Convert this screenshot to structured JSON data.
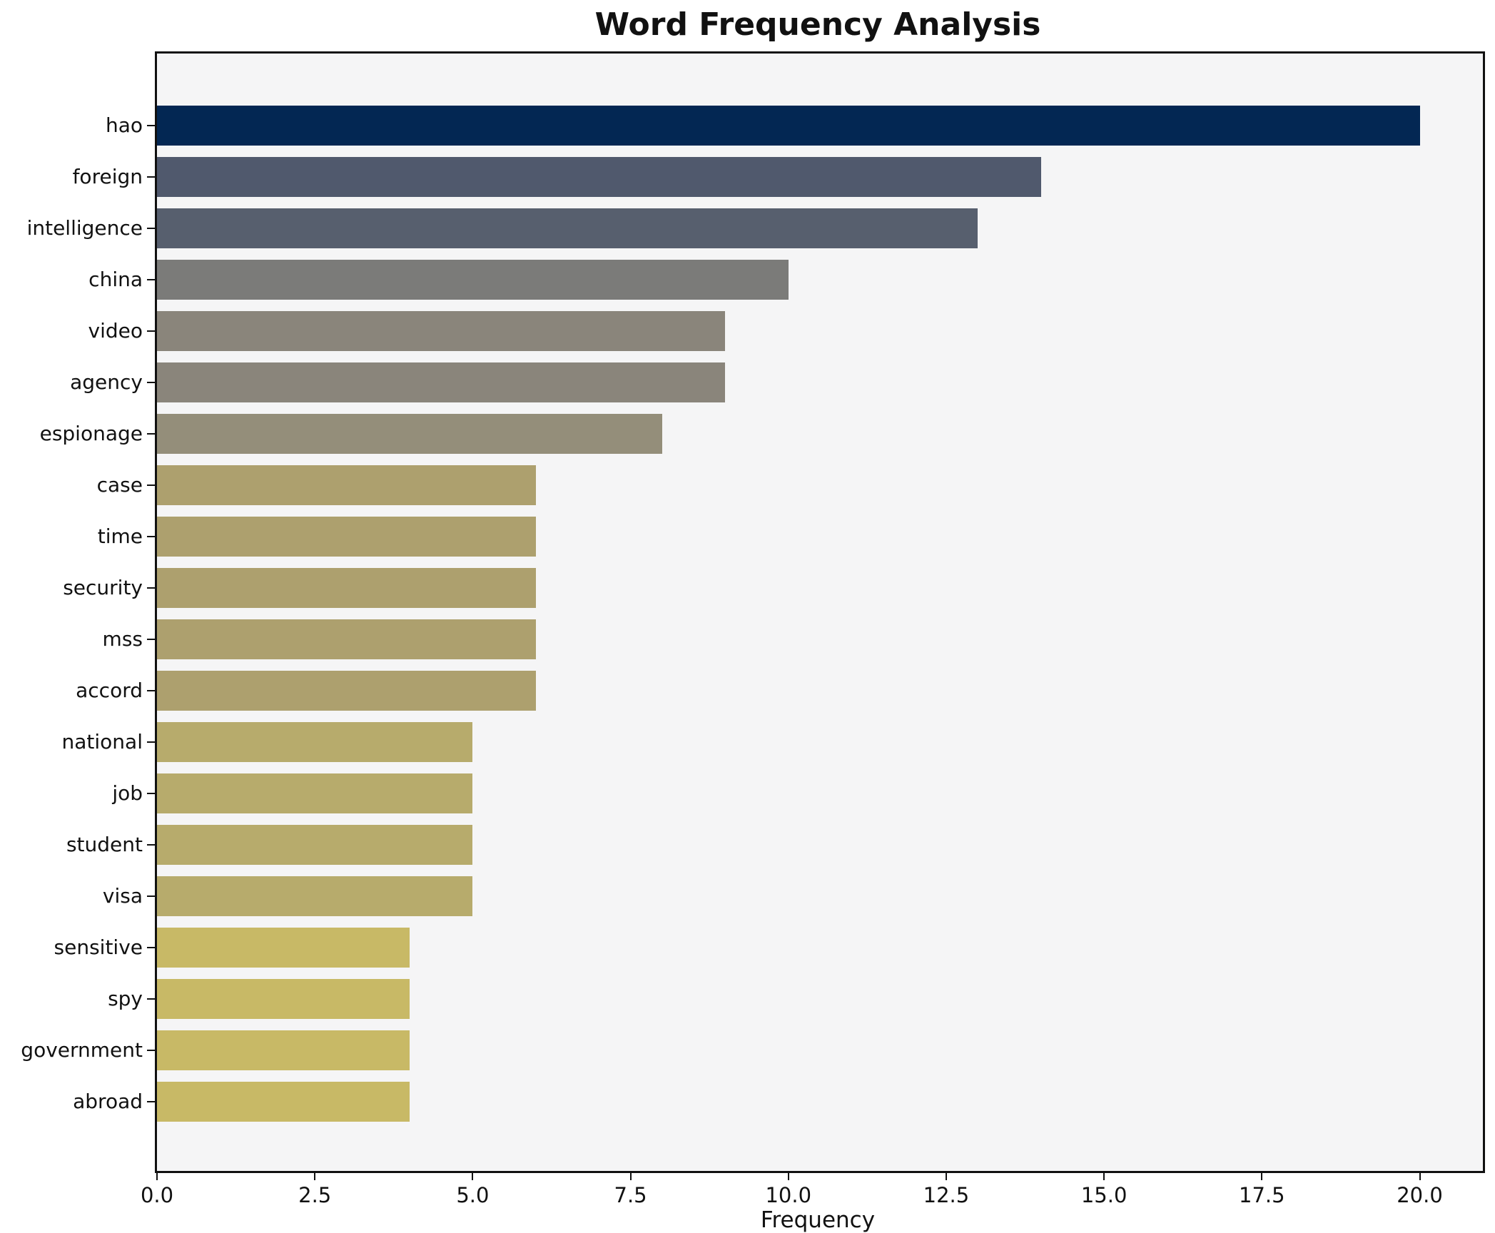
{
  "title": "Word Frequency Analysis",
  "x_axis": {
    "label": "Frequency",
    "ticks": [
      "0.0",
      "2.5",
      "5.0",
      "7.5",
      "10.0",
      "12.5",
      "15.0",
      "17.5",
      "20.0"
    ]
  },
  "colors": {
    "figure_bg": "#ffffff",
    "plot_bg": "#f5f5f6",
    "spine": "#111111",
    "text": "#111111"
  },
  "chart_data": {
    "type": "bar",
    "orientation": "horizontal",
    "title": "Word Frequency Analysis",
    "xlabel": "Frequency",
    "ylabel": "",
    "xlim": [
      0,
      21
    ],
    "grid": false,
    "legend": false,
    "categories": [
      "hao",
      "foreign",
      "intelligence",
      "china",
      "video",
      "agency",
      "espionage",
      "case",
      "time",
      "security",
      "mss",
      "accord",
      "national",
      "job",
      "student",
      "visa",
      "sensitive",
      "spy",
      "government",
      "abroad"
    ],
    "values": [
      20,
      14,
      13,
      10,
      9,
      9,
      8,
      6,
      6,
      6,
      6,
      6,
      5,
      5,
      5,
      5,
      4,
      4,
      4,
      4
    ],
    "bar_colors": [
      "#032753",
      "#50596d",
      "#575f6e",
      "#7b7b79",
      "#8a857b",
      "#8a857b",
      "#948e7a",
      "#ada06e",
      "#ada06e",
      "#ada06e",
      "#ada06e",
      "#ada06e",
      "#b7ab6c",
      "#b7ab6c",
      "#b7ab6c",
      "#b7ab6c",
      "#c8b966",
      "#c8b966",
      "#c8b966",
      "#c8b966"
    ]
  }
}
